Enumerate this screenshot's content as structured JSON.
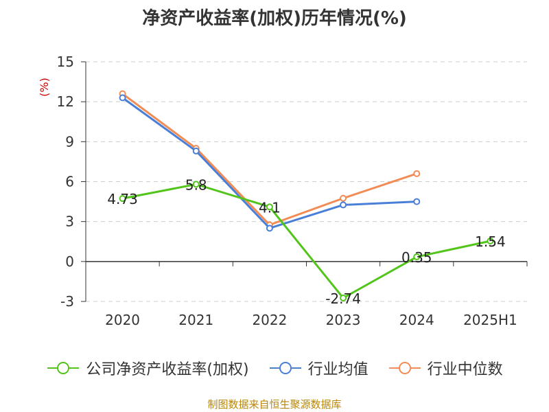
{
  "chart_data": {
    "type": "line",
    "title": "净资产收益率(加权)历年情况(%)",
    "ylabel": "(%)",
    "xlabel": "",
    "categories": [
      "2020",
      "2021",
      "2022",
      "2023",
      "2024",
      "2025H1"
    ],
    "ylim": [
      -3,
      15
    ],
    "yticks": [
      -3,
      0,
      3,
      6,
      9,
      12,
      15
    ],
    "grid": true,
    "legend_position": "bottom",
    "series": [
      {
        "name": "公司净资产收益率(加权)",
        "color": "#52c41a",
        "values": [
          4.73,
          5.8,
          4.1,
          -2.74,
          0.35,
          1.54
        ],
        "labels": [
          "4.73",
          "5.8",
          "4.1",
          "-2.74",
          "0.35",
          "1.54"
        ]
      },
      {
        "name": "行业均值",
        "color": "#4a7fd8",
        "values": [
          12.3,
          8.3,
          2.5,
          4.25,
          4.5,
          null
        ]
      },
      {
        "name": "行业中位数",
        "color": "#f28b54",
        "values": [
          12.6,
          8.5,
          2.75,
          4.75,
          6.6,
          null
        ]
      }
    ]
  },
  "source_text": "制图数据来自恒生聚源数据库"
}
